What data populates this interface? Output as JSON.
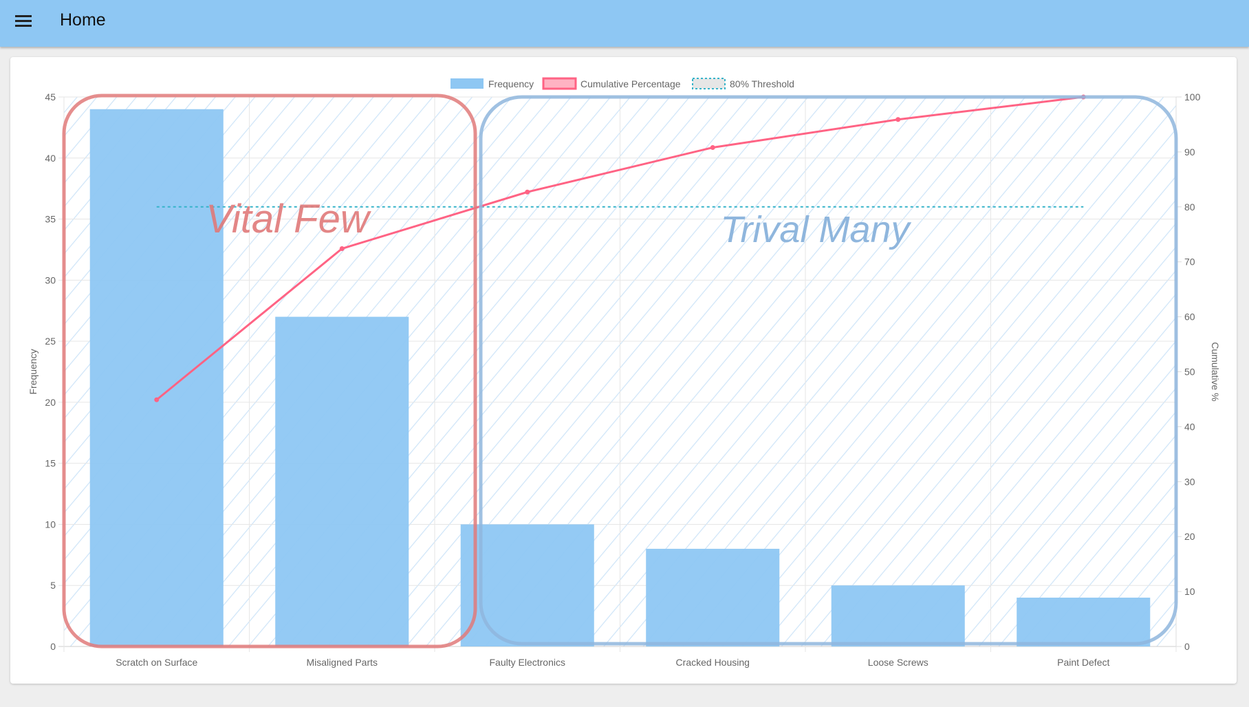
{
  "appbar": {
    "title": "Home",
    "menu_icon": "hamburger-menu-icon"
  },
  "chart_data": {
    "type": "bar",
    "categories": [
      "Scratch on Surface",
      "Misaligned Parts",
      "Faulty Electronics",
      "Cracked Housing",
      "Loose Screws",
      "Paint Defect"
    ],
    "series": [
      {
        "name": "Frequency",
        "type": "bar",
        "axis": "left",
        "values": [
          44,
          27,
          10,
          8,
          5,
          4
        ],
        "color": "#8ec7f3"
      },
      {
        "name": "Cumulative Percentage",
        "type": "line",
        "axis": "right",
        "values": [
          44.9,
          72.4,
          82.7,
          90.8,
          95.9,
          100
        ],
        "color": "#ff6384"
      },
      {
        "name": "80% Threshold",
        "type": "line",
        "axis": "right",
        "style": "dashed",
        "values": [
          80,
          80,
          80,
          80,
          80,
          80
        ],
        "color": "#36b3c9"
      }
    ],
    "ylabel": "Frequency",
    "ylim": [
      0,
      45
    ],
    "yticks": [
      0,
      5,
      10,
      15,
      20,
      25,
      30,
      35,
      40,
      45
    ],
    "y2label": "Cumulative %",
    "y2lim": [
      0,
      100
    ],
    "y2ticks": [
      0,
      10,
      20,
      30,
      40,
      50,
      60,
      70,
      80,
      90,
      100
    ],
    "grid": true,
    "legend": "top",
    "annotations": [
      {
        "text": "Vital Few",
        "color": "#e07a7a",
        "covers": [
          "Scratch on Surface",
          "Misaligned Parts"
        ]
      },
      {
        "text": "Trival Many",
        "color": "#8fb6dd",
        "covers": [
          "Faulty Electronics",
          "Cracked Housing",
          "Loose Screws",
          "Paint Defect"
        ]
      }
    ]
  }
}
